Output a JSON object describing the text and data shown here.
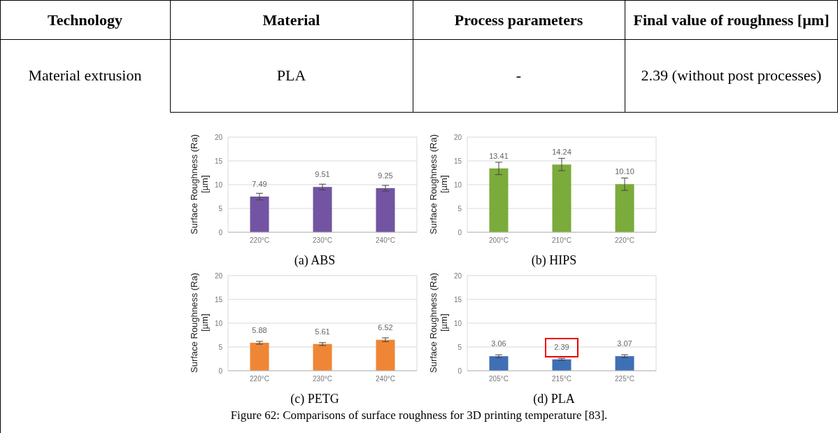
{
  "chart_data": [
    {
      "type": "other",
      "annotations": [
        "Technology",
        "Material",
        "Process parameters",
        "Final value of roughness [µm]",
        "Material extrusion",
        "PLA",
        "-",
        "2.39 (without post processes)",
        "Figure 62: Comparisons of surface roughness for 3D printing temperature [83]."
      ]
    },
    {
      "type": "bar",
      "title": "(a) ABS",
      "ylabel": "Surface Roughness (Ra) [µm]",
      "categories": [
        "220°C",
        "230°C",
        "240°C"
      ],
      "values": [
        7.49,
        9.51,
        9.25
      ],
      "value_labels": [
        "7.49",
        "9.51",
        "9.25"
      ],
      "errors": [
        0.7,
        0.6,
        0.6
      ],
      "color": "#7254a2",
      "ylim": [
        0,
        20
      ],
      "yticks": [
        0,
        5,
        10,
        15,
        20
      ],
      "grid": "y"
    },
    {
      "type": "bar",
      "title": "(b) HIPS",
      "ylabel": "Surface Roughness (Ra) [µm]",
      "categories": [
        "200°C",
        "210°C",
        "220°C"
      ],
      "values": [
        13.41,
        14.24,
        10.1
      ],
      "value_labels": [
        "13.41",
        "14.24",
        "10.10"
      ],
      "errors": [
        1.3,
        1.3,
        1.3
      ],
      "color": "#7aab3b",
      "ylim": [
        0,
        20
      ],
      "yticks": [
        0,
        5,
        10,
        15,
        20
      ],
      "grid": "y"
    },
    {
      "type": "bar",
      "title": "(c) PETG",
      "ylabel": "Surface Roughness (Ra) [µm]",
      "categories": [
        "220°C",
        "230°C",
        "240°C"
      ],
      "values": [
        5.88,
        5.61,
        6.52
      ],
      "value_labels": [
        "5.88",
        "5.61",
        "6.52"
      ],
      "errors": [
        0.3,
        0.3,
        0.4
      ],
      "color": "#ef8636",
      "ylim": [
        0,
        20
      ],
      "yticks": [
        0,
        5,
        10,
        15,
        20
      ],
      "grid": "y"
    },
    {
      "type": "bar",
      "title": "(d) PLA",
      "ylabel": "Surface Roughness (Ra) [µm]",
      "categories": [
        "205°C",
        "215°C",
        "225°C"
      ],
      "values": [
        3.06,
        2.39,
        3.07
      ],
      "value_labels": [
        "3.06",
        "2.39",
        "3.07"
      ],
      "errors": [
        0.3,
        0.2,
        0.3
      ],
      "color": "#3f6fb5",
      "ylim": [
        0,
        20
      ],
      "yticks": [
        0,
        5,
        10,
        15,
        20
      ],
      "grid": "y"
    }
  ]
}
